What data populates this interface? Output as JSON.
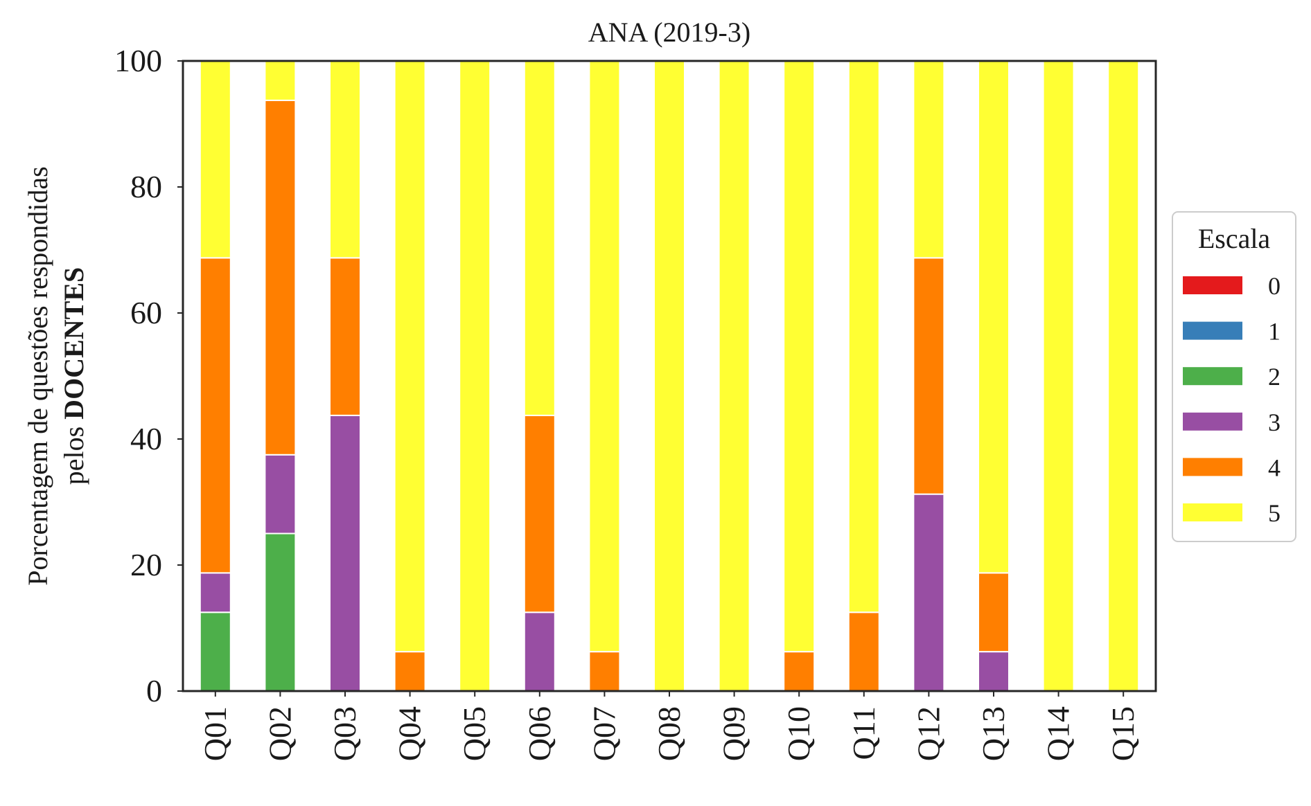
{
  "chart_data": {
    "type": "bar",
    "stacked": true,
    "title": "ANA (2019-3)",
    "xlabel": "",
    "ylabel_line1": "Porcentagem de questões respondidas",
    "ylabel_line2_prefix": "pelos ",
    "ylabel_line2_bold": "DOCENTES",
    "ylim": [
      0,
      100
    ],
    "yticks": [
      0,
      20,
      40,
      60,
      80,
      100
    ],
    "grid": false,
    "legend_title": "Escala",
    "legend_placement": "right-center",
    "categories": [
      "Q01",
      "Q02",
      "Q03",
      "Q04",
      "Q05",
      "Q06",
      "Q07",
      "Q08",
      "Q09",
      "Q10",
      "Q11",
      "Q12",
      "Q13",
      "Q14",
      "Q15"
    ],
    "series": [
      {
        "name": "0",
        "color": "#e41a1c",
        "values": [
          0,
          0,
          0,
          0,
          0,
          0,
          0,
          0,
          0,
          0,
          0,
          0,
          0,
          0,
          0
        ]
      },
      {
        "name": "1",
        "color": "#377eb8",
        "values": [
          0,
          0,
          0,
          0,
          0,
          0,
          0,
          0,
          0,
          0,
          0,
          0,
          0,
          0,
          0
        ]
      },
      {
        "name": "2",
        "color": "#4daf4a",
        "values": [
          12.5,
          25,
          0,
          0,
          0,
          0,
          0,
          0,
          0,
          0,
          0,
          0,
          0,
          0,
          0
        ]
      },
      {
        "name": "3",
        "color": "#984ea3",
        "values": [
          6.25,
          12.5,
          43.75,
          0,
          0,
          12.5,
          0,
          0,
          0,
          0,
          0,
          31.25,
          6.25,
          0,
          0
        ]
      },
      {
        "name": "4",
        "color": "#ff7f00",
        "values": [
          50,
          56.25,
          25,
          6.25,
          0,
          31.25,
          6.25,
          0,
          0,
          6.25,
          12.5,
          37.5,
          12.5,
          0,
          0
        ]
      },
      {
        "name": "5",
        "color": "#ffff33",
        "values": [
          31.25,
          6.25,
          31.25,
          93.75,
          100,
          56.25,
          93.75,
          100,
          100,
          93.75,
          87.5,
          31.25,
          81.25,
          100,
          100
        ]
      }
    ]
  }
}
